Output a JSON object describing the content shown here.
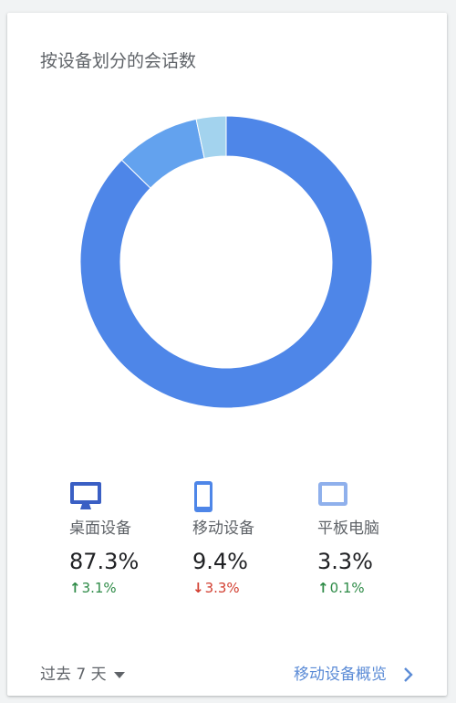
{
  "title": "按设备划分的会话数",
  "chart_data": {
    "type": "pie",
    "categories": [
      "桌面设备",
      "移动设备",
      "平板电脑"
    ],
    "values": [
      87.3,
      9.4,
      3.3
    ],
    "colors": [
      "#4e86e8",
      "#63a2ee",
      "#a3d3ee"
    ],
    "donut": true
  },
  "legend": [
    {
      "label": "桌面设备",
      "value": "87.3%",
      "arrow": "↑",
      "delta": "3.1%",
      "trend": "up",
      "icon": "desktop-icon"
    },
    {
      "label": "移动设备",
      "value": "9.4%",
      "arrow": "↓",
      "delta": "3.3%",
      "trend": "down",
      "icon": "mobile-icon"
    },
    {
      "label": "平板电脑",
      "value": "3.3%",
      "arrow": "↑",
      "delta": "0.1%",
      "trend": "up",
      "icon": "tablet-icon"
    }
  ],
  "colors": {
    "up": "#2e8b47",
    "down": "#d23f31"
  },
  "footer": {
    "date_range": "过去 7 天",
    "link": "移动设备概览"
  }
}
